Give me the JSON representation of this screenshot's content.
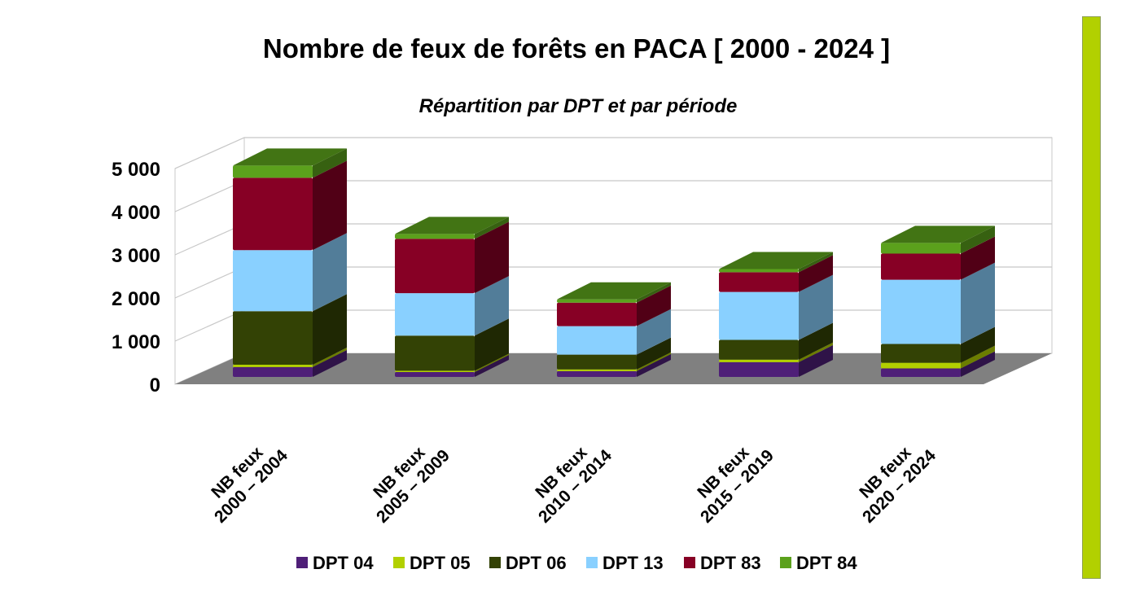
{
  "accent_color": "#b2d000",
  "chart_data": {
    "type": "bar",
    "stacked": true,
    "style": "3d",
    "title": "Nombre de feux de forêts en PACA [ 2000 - 2024 ]",
    "subtitle": "Répartition par DPT et par période",
    "xlabel": "",
    "ylabel": "",
    "ylim": [
      0,
      5000
    ],
    "yticks": [
      0,
      1000,
      2000,
      3000,
      4000,
      5000
    ],
    "ytick_labels": [
      "0",
      "1 000",
      "2 000",
      "3 000",
      "4 000",
      "5 000"
    ],
    "grid": true,
    "legend_position": "bottom",
    "categories": [
      [
        "NB feux",
        "2000 – 2004"
      ],
      [
        "NB feux",
        "2005 – 2009"
      ],
      [
        "NB feux",
        "2010 – 2014"
      ],
      [
        "NB feux",
        "2015 – 2019"
      ],
      [
        "NB feux",
        "2020 – 2024"
      ]
    ],
    "series": [
      {
        "name": "DPT 04",
        "color": "#4f1f78",
        "values": [
          230,
          115,
          135,
          345,
          200
        ]
      },
      {
        "name": "DPT 05",
        "color": "#b2d000",
        "values": [
          55,
          30,
          40,
          60,
          130
        ]
      },
      {
        "name": "DPT 06",
        "color": "#334205",
        "values": [
          1250,
          820,
          345,
          460,
          440
        ]
      },
      {
        "name": "DPT 13",
        "color": "#89d0ff",
        "values": [
          1425,
          990,
          665,
          1120,
          1500
        ]
      },
      {
        "name": "DPT 83",
        "color": "#870025",
        "values": [
          1690,
          1270,
          550,
          460,
          610
        ]
      },
      {
        "name": "DPT 84",
        "color": "#5ba11c",
        "values": [
          285,
          115,
          75,
          75,
          250
        ]
      }
    ]
  }
}
